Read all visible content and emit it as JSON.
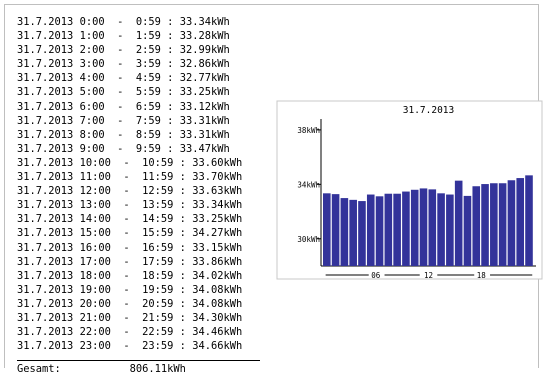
{
  "report": {
    "rows": [
      {
        "date": "31.7.2013",
        "from": "0:00",
        "to": "0:59",
        "value": "33.34kWh"
      },
      {
        "date": "31.7.2013",
        "from": "1:00",
        "to": "1:59",
        "value": "33.28kWh"
      },
      {
        "date": "31.7.2013",
        "from": "2:00",
        "to": "2:59",
        "value": "32.99kWh"
      },
      {
        "date": "31.7.2013",
        "from": "3:00",
        "to": "3:59",
        "value": "32.86kWh"
      },
      {
        "date": "31.7.2013",
        "from": "4:00",
        "to": "4:59",
        "value": "32.77kWh"
      },
      {
        "date": "31.7.2013",
        "from": "5:00",
        "to": "5:59",
        "value": "33.25kWh"
      },
      {
        "date": "31.7.2013",
        "from": "6:00",
        "to": "6:59",
        "value": "33.12kWh"
      },
      {
        "date": "31.7.2013",
        "from": "7:00",
        "to": "7:59",
        "value": "33.31kWh"
      },
      {
        "date": "31.7.2013",
        "from": "8:00",
        "to": "8:59",
        "value": "33.31kWh"
      },
      {
        "date": "31.7.2013",
        "from": "9:00",
        "to": "9:59",
        "value": "33.47kWh"
      },
      {
        "date": "31.7.2013",
        "from": "10:00",
        "to": "10:59",
        "value": "33.60kWh"
      },
      {
        "date": "31.7.2013",
        "from": "11:00",
        "to": "11:59",
        "value": "33.70kWh"
      },
      {
        "date": "31.7.2013",
        "from": "12:00",
        "to": "12:59",
        "value": "33.63kWh"
      },
      {
        "date": "31.7.2013",
        "from": "13:00",
        "to": "13:59",
        "value": "33.34kWh"
      },
      {
        "date": "31.7.2013",
        "from": "14:00",
        "to": "14:59",
        "value": "33.25kWh"
      },
      {
        "date": "31.7.2013",
        "from": "15:00",
        "to": "15:59",
        "value": "34.27kWh"
      },
      {
        "date": "31.7.2013",
        "from": "16:00",
        "to": "16:59",
        "value": "33.15kWh"
      },
      {
        "date": "31.7.2013",
        "from": "17:00",
        "to": "17:59",
        "value": "33.86kWh"
      },
      {
        "date": "31.7.2013",
        "from": "18:00",
        "to": "18:59",
        "value": "34.02kWh"
      },
      {
        "date": "31.7.2013",
        "from": "19:00",
        "to": "19:59",
        "value": "34.08kWh"
      },
      {
        "date": "31.7.2013",
        "from": "20:00",
        "to": "20:59",
        "value": "34.08kWh"
      },
      {
        "date": "31.7.2013",
        "from": "21:00",
        "to": "21:59",
        "value": "34.30kWh"
      },
      {
        "date": "31.7.2013",
        "from": "22:00",
        "to": "22:59",
        "value": "34.46kWh"
      },
      {
        "date": "31.7.2013",
        "from": "23:00",
        "to": "23:59",
        "value": "34.66kWh"
      }
    ],
    "total_label": "Gesamt:",
    "total_value": "806.11kWh"
  },
  "chart_data": {
    "type": "bar",
    "title": "31.7.2013",
    "categories": [
      "0",
      "1",
      "2",
      "3",
      "4",
      "5",
      "6",
      "7",
      "8",
      "9",
      "10",
      "11",
      "12",
      "13",
      "14",
      "15",
      "16",
      "17",
      "18",
      "19",
      "20",
      "21",
      "22",
      "23"
    ],
    "values": [
      33.34,
      33.28,
      32.99,
      32.86,
      32.77,
      33.25,
      33.12,
      33.31,
      33.31,
      33.47,
      33.6,
      33.7,
      33.63,
      33.34,
      33.25,
      34.27,
      33.15,
      33.86,
      34.02,
      34.08,
      34.08,
      34.3,
      34.46,
      34.66
    ],
    "x_tick_labels": [
      "06",
      "12",
      "18"
    ],
    "y_tick_labels": [
      "38kWh",
      "34kWh",
      "30kWh"
    ],
    "y_ticks": [
      38,
      34,
      30
    ],
    "ylim": [
      28,
      38.8
    ],
    "bar_color": "#33339a",
    "xlabel": "",
    "ylabel": "",
    "grid": false
  }
}
